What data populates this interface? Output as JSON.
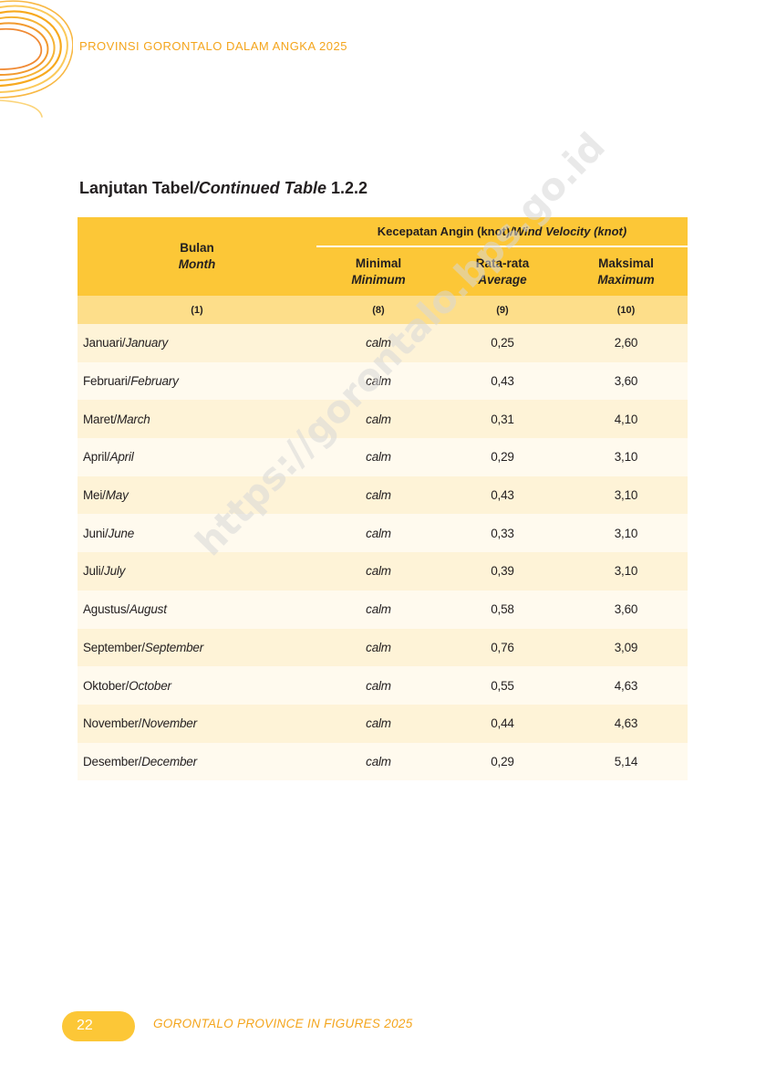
{
  "header": {
    "title": "PROVINSI GORONTALO DALAM ANGKA 2025"
  },
  "table_title": {
    "prefix": "Lanjutan Tabel",
    "italic": "/Continued Table",
    "number": " 1.2.2"
  },
  "table": {
    "group_header_id": "Kecepatan Angin (knot)",
    "group_header_en": "/Wind Velocity (knot)",
    "month_header_id": "Bulan",
    "month_header_en": "Month",
    "col_min_id": "Minimal",
    "col_min_en": "Minimum",
    "col_avg_id": "Rata-rata",
    "col_avg_en": "Average",
    "col_max_id": "Maksimal",
    "col_max_en": "Maximum",
    "col_nums": [
      "(1)",
      "(8)",
      "(9)",
      "(10)"
    ],
    "rows": [
      {
        "id": "Januari/",
        "en": "January",
        "min": "calm",
        "avg": "0,25",
        "max": "2,60"
      },
      {
        "id": "Februari/",
        "en": "February",
        "min": "calm",
        "avg": "0,43",
        "max": "3,60"
      },
      {
        "id": "Maret/",
        "en": "March",
        "min": "calm",
        "avg": "0,31",
        "max": "4,10"
      },
      {
        "id": "April/",
        "en": "April",
        "min": "calm",
        "avg": "0,29",
        "max": "3,10"
      },
      {
        "id": "Mei/",
        "en": "May",
        "min": "calm",
        "avg": "0,43",
        "max": "3,10"
      },
      {
        "id": "Juni/",
        "en": "June",
        "min": "calm",
        "avg": "0,33",
        "max": "3,10"
      },
      {
        "id": "Juli/",
        "en": "July",
        "min": "calm",
        "avg": "0,39",
        "max": "3,10"
      },
      {
        "id": "Agustus/",
        "en": "August",
        "min": "calm",
        "avg": "0,58",
        "max": "3,60"
      },
      {
        "id": "September/",
        "en": "September",
        "min": "calm",
        "avg": "0,76",
        "max": "3,09"
      },
      {
        "id": "Oktober/",
        "en": "October",
        "min": "calm",
        "avg": "0,55",
        "max": "4,63"
      },
      {
        "id": "November/",
        "en": "November",
        "min": "calm",
        "avg": "0,44",
        "max": "4,63"
      },
      {
        "id": "Desember/",
        "en": "December",
        "min": "calm",
        "avg": "0,29",
        "max": "5,14"
      }
    ]
  },
  "watermark": "https://gorontalo.bps.go.id",
  "footer": {
    "page_number": "22",
    "title": "GORONTALO PROVINCE IN FIGURES 2025"
  },
  "colors": {
    "accent": "#fcc737",
    "brand_orange": "#f4a51c"
  }
}
